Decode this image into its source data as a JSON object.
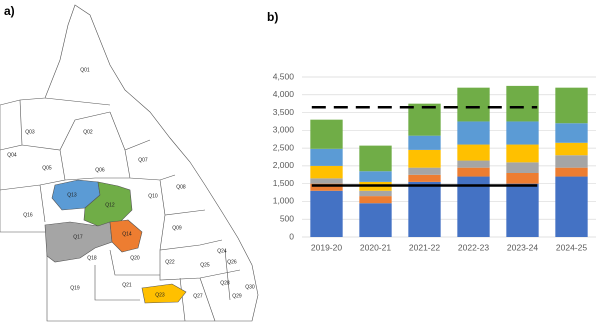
{
  "panel_a": {
    "label": "a)",
    "regions": [
      "Q01",
      "Q02",
      "Q03",
      "Q04",
      "Q05",
      "Q06",
      "Q07",
      "Q08",
      "Q09",
      "Q10",
      "Q12",
      "Q13",
      "Q14",
      "Q16",
      "Q17",
      "Q18",
      "Q19",
      "Q20",
      "Q21",
      "Q22",
      "Q23",
      "Q24",
      "Q25",
      "Q26",
      "Q27",
      "Q28",
      "Q29",
      "Q30"
    ]
  },
  "chart_data": {
    "type": "bar",
    "stacked": true,
    "panel_label": "b)",
    "categories": [
      "2019-20",
      "2020-21",
      "2021-22",
      "2022-23",
      "2023-24",
      "2024-25"
    ],
    "series": [
      {
        "color": "#4472c4",
        "values": [
          1300,
          950,
          1550,
          1700,
          1500,
          1700
        ]
      },
      {
        "color": "#ed7d31",
        "values": [
          200,
          200,
          200,
          250,
          300,
          250
        ]
      },
      {
        "color": "#a5a5a5",
        "values": [
          150,
          150,
          200,
          200,
          300,
          350
        ]
      },
      {
        "color": "#ffc000",
        "values": [
          350,
          250,
          500,
          450,
          500,
          350
        ]
      },
      {
        "color": "#5b9bd5",
        "values": [
          480,
          300,
          400,
          650,
          650,
          550
        ]
      },
      {
        "color": "#70ad47",
        "values": [
          820,
          720,
          900,
          950,
          1000,
          1000
        ]
      }
    ],
    "reference_lines": [
      {
        "value": 3650,
        "style": "dashed",
        "from": "2019-20",
        "to": "2023-24"
      },
      {
        "value": 1450,
        "style": "solid",
        "from": "2019-20",
        "to": "2023-24"
      }
    ],
    "ylim": [
      0,
      4500
    ],
    "yticks": [
      0,
      {
        "value": 500,
        "label": "500"
      },
      {
        "value": 1000,
        "label": "1,000"
      },
      {
        "value": 1500,
        "label": "1,500"
      },
      {
        "value": 2000,
        "label": "2,000"
      },
      {
        "value": 2500,
        "label": "2,500"
      },
      {
        "value": 3000,
        "label": "3,000"
      },
      {
        "value": 3500,
        "label": "3,500"
      },
      {
        "value": 4000,
        "label": "4,000"
      },
      {
        "value": 4500,
        "label": "4,500"
      }
    ],
    "grid": true
  }
}
